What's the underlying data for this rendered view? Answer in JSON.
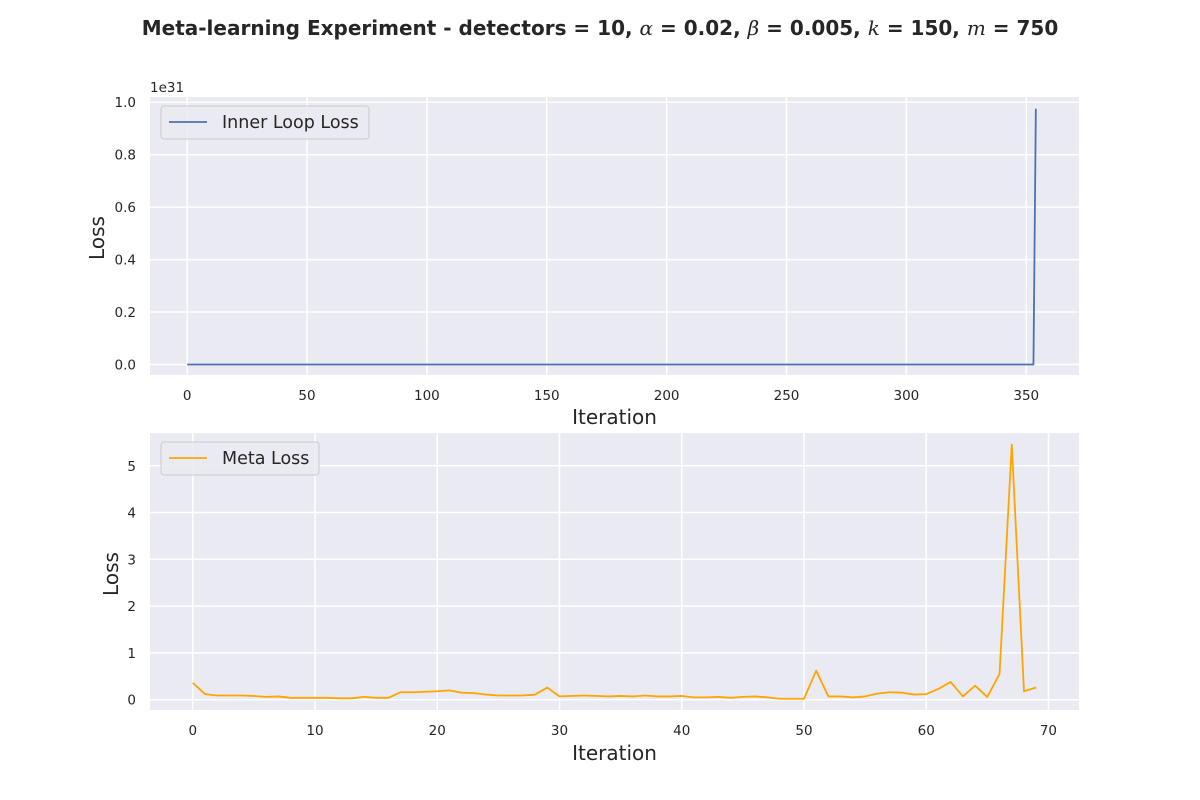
{
  "title": {
    "prefix": "Meta-learning Experiment - detectors = 10, ",
    "parts": [
      {
        "sym": "α",
        "text": " = 0.02, "
      },
      {
        "sym": "β",
        "text": " = 0.005, "
      },
      {
        "sym": "k",
        "text": " = 150, "
      },
      {
        "sym": "m",
        "text": " = 750"
      }
    ]
  },
  "colors": {
    "background": "#eaeaf2",
    "grid": "#ffffff",
    "inner": "#4c72b0",
    "meta": "#ffa500"
  },
  "chart_data": [
    {
      "type": "line",
      "xlabel": "Iteration",
      "ylabel": "Loss",
      "y_offset_label": "1e31",
      "xlim": [
        -15.5,
        372
      ],
      "ylim": [
        -0.04,
        1.02
      ],
      "xticks": [
        0,
        50,
        100,
        150,
        200,
        250,
        300,
        350
      ],
      "yticks": [
        0.0,
        0.2,
        0.4,
        0.6,
        0.8,
        1.0
      ],
      "ytick_labels": [
        "0.0",
        "0.2",
        "0.4",
        "0.6",
        "0.8",
        "1.0"
      ],
      "grid": true,
      "legend_position": "top-left",
      "series": [
        {
          "name": "Inner Loop Loss",
          "points": [
            [
              0,
              0
            ],
            [
              353,
              0
            ],
            [
              354,
              0.975
            ]
          ]
        }
      ]
    },
    {
      "type": "line",
      "xlabel": "Iteration",
      "ylabel": "Loss",
      "xlim": [
        -3.5,
        72.5
      ],
      "ylim": [
        -0.22,
        5.7
      ],
      "xticks": [
        0,
        10,
        20,
        30,
        40,
        50,
        60,
        70
      ],
      "yticks": [
        0,
        1,
        2,
        3,
        4,
        5
      ],
      "ytick_labels": [
        "0",
        "1",
        "2",
        "3",
        "4",
        "5"
      ],
      "grid": true,
      "legend_position": "top-left",
      "series": [
        {
          "name": "Meta Loss",
          "x": [
            0,
            1,
            2,
            3,
            4,
            5,
            6,
            7,
            8,
            9,
            10,
            11,
            12,
            13,
            14,
            15,
            16,
            17,
            18,
            19,
            20,
            21,
            22,
            23,
            24,
            25,
            26,
            27,
            28,
            29,
            30,
            31,
            32,
            33,
            34,
            35,
            36,
            37,
            38,
            39,
            40,
            41,
            42,
            43,
            44,
            45,
            46,
            47,
            48,
            49,
            50,
            51,
            52,
            53,
            54,
            55,
            56,
            57,
            58,
            59,
            60,
            61,
            62,
            63,
            64,
            65,
            66,
            67,
            68,
            69
          ],
          "values": [
            0.36,
            0.12,
            0.09,
            0.09,
            0.09,
            0.08,
            0.06,
            0.07,
            0.04,
            0.04,
            0.04,
            0.04,
            0.03,
            0.03,
            0.06,
            0.04,
            0.04,
            0.16,
            0.16,
            0.17,
            0.18,
            0.2,
            0.15,
            0.14,
            0.11,
            0.09,
            0.09,
            0.09,
            0.11,
            0.26,
            0.07,
            0.08,
            0.09,
            0.08,
            0.07,
            0.08,
            0.07,
            0.09,
            0.07,
            0.07,
            0.08,
            0.05,
            0.05,
            0.06,
            0.04,
            0.06,
            0.07,
            0.05,
            0.02,
            0.02,
            0.02,
            0.62,
            0.07,
            0.07,
            0.05,
            0.07,
            0.13,
            0.16,
            0.15,
            0.11,
            0.12,
            0.23,
            0.38,
            0.07,
            0.3,
            0.06,
            0.55,
            5.45,
            0.18,
            0.26
          ]
        }
      ]
    }
  ]
}
